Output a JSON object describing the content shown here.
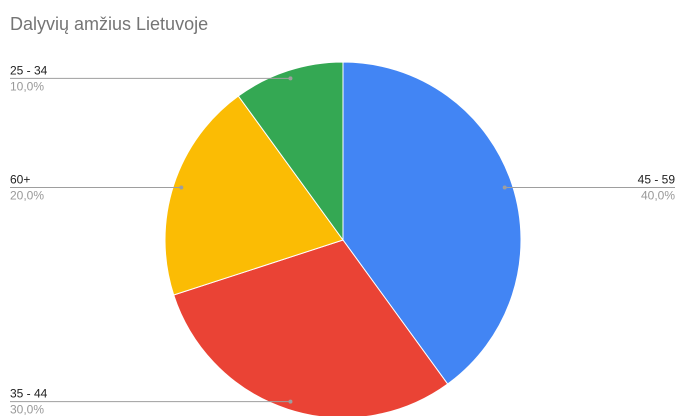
{
  "chart_data": {
    "type": "pie",
    "title": "Dalyvių amžius Lietuvoje",
    "categories": [
      "45 - 59",
      "35 - 44",
      "60+",
      "25 - 34"
    ],
    "values": [
      40,
      30,
      20,
      10
    ],
    "value_labels": [
      "40,0%",
      "30,0%",
      "20,0%",
      "10,0%"
    ],
    "colors": [
      "#4285f4",
      "#ea4335",
      "#fbbc04",
      "#34a853"
    ]
  }
}
